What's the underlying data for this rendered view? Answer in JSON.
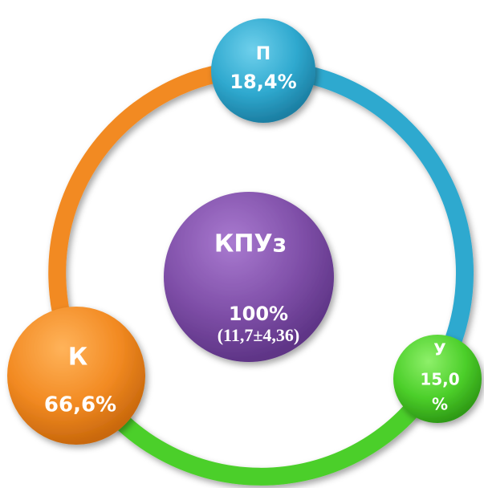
{
  "nodes": [
    {
      "label": "П",
      "value": "18,4%"
    },
    {
      "label": "КПУз",
      "value": "100%",
      "note": "(11,7±4,36)"
    },
    {
      "label": "К",
      "value": "66,6%"
    },
    {
      "label": "У",
      "value_lines": [
        "15,0",
        "%"
      ]
    }
  ]
}
